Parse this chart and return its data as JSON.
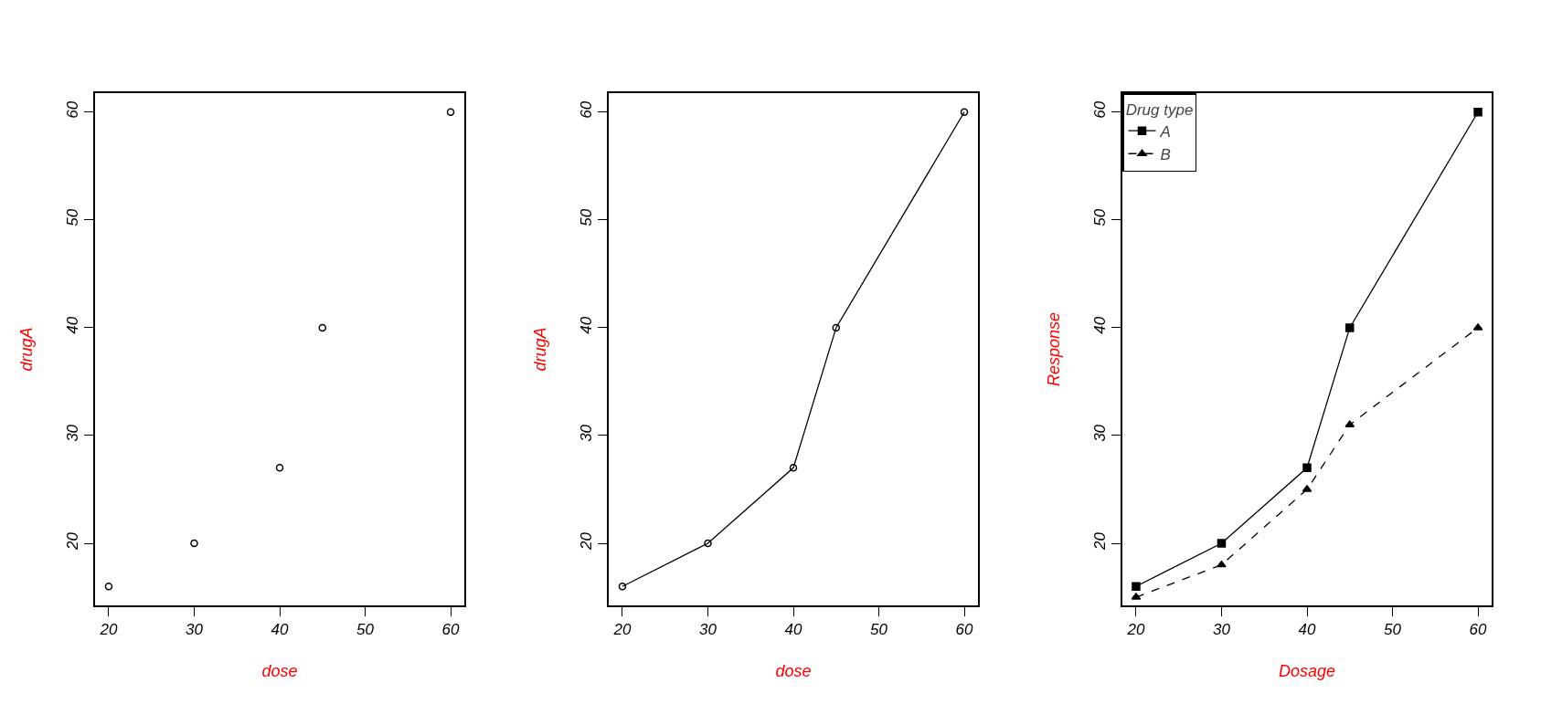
{
  "chart_data": [
    {
      "type": "scatter",
      "x": [
        20,
        30,
        40,
        45,
        60
      ],
      "values": [
        16,
        20,
        27,
        40,
        60
      ],
      "color": "#000000",
      "xlabel": "dose",
      "ylabel": "drugA",
      "marker": "circle",
      "xlim": [
        18.4,
        61.6
      ],
      "ylim": [
        14.24,
        61.76
      ],
      "xticks": [
        20,
        30,
        40,
        50,
        60
      ],
      "yticks": [
        20,
        30,
        40,
        50,
        60
      ],
      "grid": false,
      "legend": false
    },
    {
      "type": "line",
      "x": [
        20,
        30,
        40,
        45,
        60
      ],
      "values": [
        16,
        20,
        27,
        40,
        60
      ],
      "color": "#000000",
      "xlabel": "dose",
      "ylabel": "drugA",
      "marker": "circle",
      "line_style": "solid",
      "xlim": [
        18.4,
        61.6
      ],
      "ylim": [
        14.24,
        61.76
      ],
      "xticks": [
        20,
        30,
        40,
        50,
        60
      ],
      "yticks": [
        20,
        30,
        40,
        50,
        60
      ],
      "grid": false,
      "legend": false
    },
    {
      "type": "line",
      "x": [
        20,
        30,
        40,
        45,
        60
      ],
      "xlabel": "Dosage",
      "ylabel": "Response",
      "legend_title": "Drug type",
      "legend": "top left",
      "xlim": [
        18.4,
        61.6
      ],
      "ylim": [
        14.24,
        61.76
      ],
      "xticks": [
        20,
        30,
        40,
        50,
        60
      ],
      "yticks": [
        20,
        30,
        40,
        50,
        60
      ],
      "grid": false,
      "series": [
        {
          "name": "A",
          "color": "#000000",
          "values": [
            16,
            20,
            27,
            40,
            60
          ],
          "marker": "square",
          "line_style": "solid"
        },
        {
          "name": "B",
          "color": "#000000",
          "values": [
            15,
            18,
            25,
            31,
            40
          ],
          "marker": "triangle",
          "line_style": "dashed"
        }
      ]
    }
  ]
}
